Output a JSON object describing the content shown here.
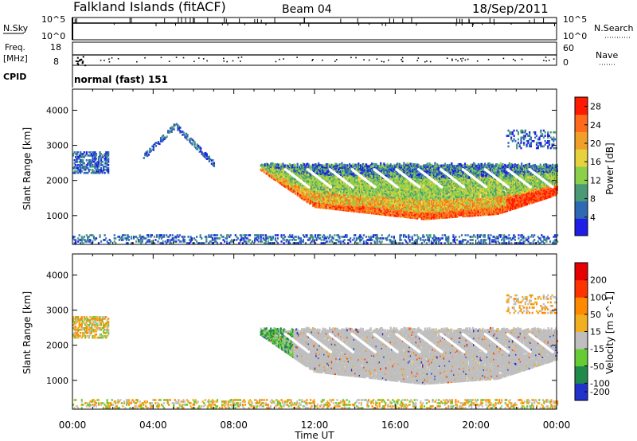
{
  "header": {
    "station": "Falkland Islands (fitACF)",
    "beam": "Beam 04",
    "date": "18/Sep/2011"
  },
  "top_panels": {
    "nsky_label": "N.Sky",
    "nsearch_label": "N.Search",
    "nsky_ticks": [
      "10^5",
      "10^0"
    ],
    "nsearch_ticks": [
      "10^5",
      "10^0"
    ],
    "freq_label_1": "Freq.",
    "freq_label_2": "[MHz]",
    "freq_ticks": [
      "18",
      "8"
    ],
    "nave_label": "Nave",
    "nave_ticks": [
      "60",
      "0"
    ],
    "cpid_label": "CPID",
    "cpid_value": "normal (fast) 151"
  },
  "chart_data": [
    {
      "type": "heatmap",
      "panel": "power",
      "xlabel": "Time UT",
      "ylabel": "Slant Range [km]",
      "x_ticks": [
        "00:00",
        "04:00",
        "08:00",
        "12:00",
        "16:00",
        "20:00",
        "00:00"
      ],
      "xlim_hours": [
        0,
        24
      ],
      "ylim_km": [
        180,
        4600
      ],
      "y_ticks": [
        1000,
        2000,
        3000,
        4000
      ],
      "colorbar_label": "Power [dB]",
      "colorbar_ticks": [
        4,
        8,
        12,
        16,
        20,
        24,
        28
      ],
      "colorbar_range": [
        0,
        30
      ],
      "colorbar_colors": [
        "#1e1ee6",
        "#2e6ab4",
        "#4a9a78",
        "#8ccf4a",
        "#e6d23c",
        "#f0a028",
        "#ff6b1a",
        "#ff1a00"
      ],
      "features": [
        {
          "desc": "main echo band",
          "start_h": 9.3,
          "end_h": 24.0,
          "top_km": 2450,
          "bottom_km": 900,
          "dominant": "orange-red at lower edge, green/yellow in middle"
        },
        {
          "desc": "early far-range scatter",
          "start_h": 0.0,
          "end_h": 1.8,
          "top_km": 2800,
          "bottom_km": 2200,
          "dominant": "dark blue"
        },
        {
          "desc": "arc scatter",
          "start_h": 3.5,
          "end_h": 7.0,
          "top_km": 3650,
          "bottom_km": 2600,
          "dominant": "blue"
        },
        {
          "desc": "near-range ground scatter",
          "start_h": 0.0,
          "end_h": 24.0,
          "top_km": 450,
          "bottom_km": 200,
          "dominant": "sparse blue"
        }
      ]
    },
    {
      "type": "heatmap",
      "panel": "velocity",
      "xlabel": "Time UT",
      "ylabel": "Slant Range [km]",
      "x_ticks": [
        "00:00",
        "04:00",
        "08:00",
        "12:00",
        "16:00",
        "20:00",
        "00:00"
      ],
      "xlim_hours": [
        0,
        24
      ],
      "ylim_km": [
        180,
        4600
      ],
      "y_ticks": [
        1000,
        2000,
        3000,
        4000
      ],
      "colorbar_label": "Velocity [m s^-1]",
      "colorbar_ticks": [
        200,
        100,
        50,
        15,
        -15,
        -50,
        -100,
        -200
      ],
      "colorbar_colors": [
        "#2233cc",
        "#1f8a4a",
        "#66cc33",
        "#bfbfbf",
        "#f0b020",
        "#ff8a00",
        "#ff3300",
        "#e60000"
      ],
      "features": [
        {
          "desc": "main echo band",
          "start_h": 9.3,
          "end_h": 24.0,
          "top_km": 2450,
          "bottom_km": 900,
          "dominant": "grey (ground scatter) with green onset"
        },
        {
          "desc": "early far-range scatter",
          "start_h": 0.0,
          "end_h": 1.8,
          "top_km": 2800,
          "bottom_km": 2200,
          "dominant": "orange"
        },
        {
          "desc": "near-range scatter",
          "start_h": 0.0,
          "end_h": 24.0,
          "top_km": 450,
          "bottom_km": 200,
          "dominant": "sparse orange/green"
        }
      ]
    }
  ]
}
